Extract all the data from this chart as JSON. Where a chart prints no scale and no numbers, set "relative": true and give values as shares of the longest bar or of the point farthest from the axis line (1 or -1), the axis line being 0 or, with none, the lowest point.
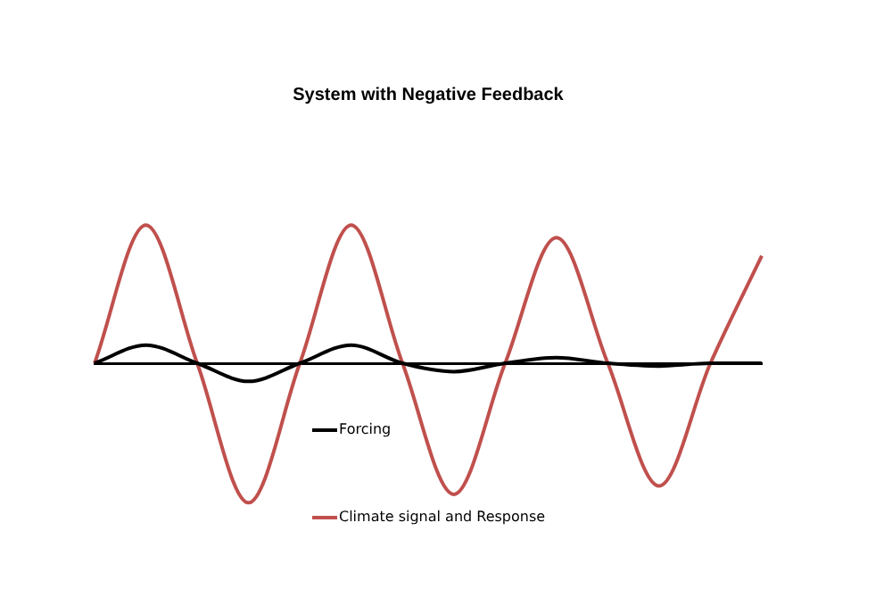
{
  "chart_data": {
    "type": "line",
    "title": "System with Negative Feedback",
    "relative": true,
    "categories": [
      null,
      null,
      null,
      null,
      null,
      null,
      null,
      null,
      null,
      null,
      null,
      null,
      null,
      null
    ],
    "legend": "bottom",
    "grid": false,
    "marker": "none",
    "line_style": "solid",
    "series": [
      {
        "name": "Forcing",
        "color": "#000000",
        "values": [
          0,
          0.13,
          0,
          -0.13,
          0,
          0.13,
          0,
          -0.06,
          0,
          0.04,
          0,
          -0.02,
          0,
          0
        ]
      },
      {
        "name": "Climate signal and Response",
        "color": "#c0504d",
        "values": [
          0,
          0.99,
          0,
          -1,
          0,
          0.99,
          0,
          -0.94,
          0,
          0.9,
          0,
          -0.88,
          0,
          0.77
        ]
      }
    ]
  }
}
